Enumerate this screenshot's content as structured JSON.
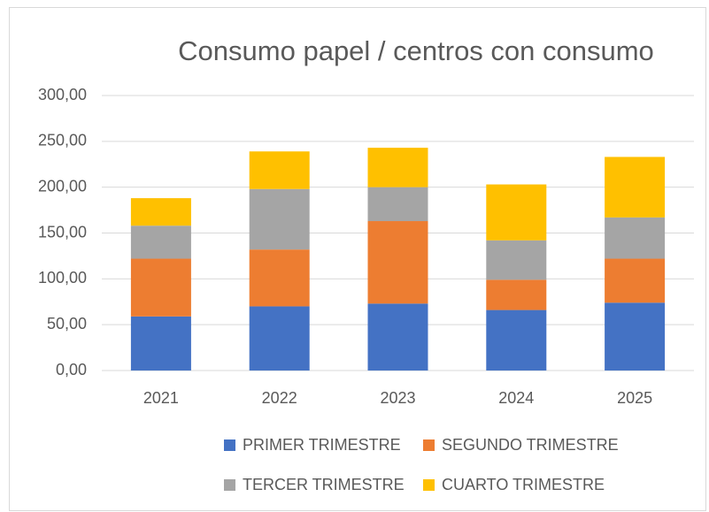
{
  "chart_data": {
    "type": "bar",
    "stacked": true,
    "title": "Consumo papel / centros con consumo",
    "categories": [
      "2021",
      "2022",
      "2023",
      "2024",
      "2025"
    ],
    "series": [
      {
        "name": "PRIMER TRIMESTRE",
        "color": "#4472c4",
        "values": [
          59,
          70,
          73,
          66,
          74
        ]
      },
      {
        "name": "SEGUNDO TRIMESTRE",
        "color": "#ed7d31",
        "values": [
          63,
          62,
          90,
          33,
          48
        ]
      },
      {
        "name": "TERCER TRIMESTRE",
        "color": "#a5a5a5",
        "values": [
          36,
          66,
          37,
          43,
          45
        ]
      },
      {
        "name": "CUARTO TRIMESTRE",
        "color": "#ffc000",
        "values": [
          30,
          41,
          43,
          61,
          66
        ]
      }
    ],
    "ylim": [
      0,
      300
    ],
    "yticks": [
      {
        "value": 0,
        "label": "0,00"
      },
      {
        "value": 50,
        "label": "50,00"
      },
      {
        "value": 100,
        "label": "100,00"
      },
      {
        "value": 150,
        "label": "150,00"
      },
      {
        "value": 200,
        "label": "200,00"
      },
      {
        "value": 250,
        "label": "250,00"
      },
      {
        "value": 300,
        "label": "300,00"
      }
    ],
    "grid": true,
    "legend": "bottom"
  }
}
